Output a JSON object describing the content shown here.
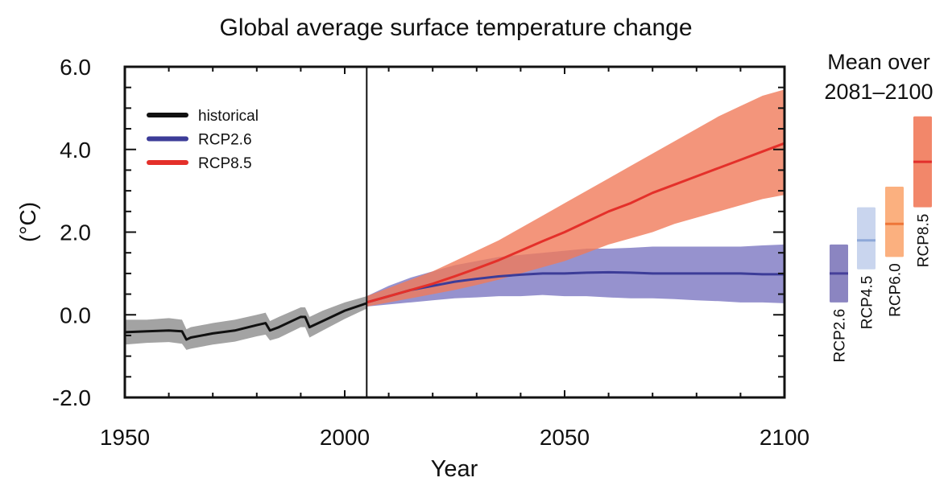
{
  "chart_data": {
    "type": "line",
    "title": "Global average surface temperature change",
    "xlabel": "Year",
    "ylabel": "(°C)",
    "xlim": [
      1950,
      2100
    ],
    "ylim": [
      -2.0,
      6.0
    ],
    "x_ticks": [
      "1950",
      "2000",
      "2050",
      "2100"
    ],
    "y_ticks": [
      "6.0",
      "4.0",
      "2.0",
      "0.0",
      "-2.0"
    ],
    "grid": false,
    "legend_placement": "top-left",
    "reference_line_year": 2005,
    "series": [
      {
        "name": "historical",
        "color": "#111111",
        "band_color": "#a3a3a3",
        "x": [
          1950,
          1955,
          1960,
          1963,
          1964,
          1965,
          1970,
          1975,
          1980,
          1982,
          1983,
          1985,
          1990,
          1991,
          1992,
          1995,
          2000,
          2005
        ],
        "values": [
          -0.42,
          -0.4,
          -0.38,
          -0.4,
          -0.6,
          -0.55,
          -0.45,
          -0.38,
          -0.25,
          -0.2,
          -0.38,
          -0.3,
          -0.05,
          -0.05,
          -0.3,
          -0.15,
          0.1,
          0.28
        ],
        "lower": [
          -0.72,
          -0.68,
          -0.66,
          -0.7,
          -0.85,
          -0.82,
          -0.72,
          -0.65,
          -0.52,
          -0.48,
          -0.62,
          -0.56,
          -0.3,
          -0.3,
          -0.55,
          -0.38,
          -0.1,
          0.15
        ],
        "upper": [
          -0.12,
          -0.12,
          -0.08,
          -0.12,
          -0.35,
          -0.3,
          -0.2,
          -0.12,
          0.0,
          0.05,
          -0.15,
          -0.05,
          0.18,
          0.18,
          -0.05,
          0.1,
          0.3,
          0.45
        ]
      },
      {
        "name": "RCP2.6",
        "color": "#3c3c98",
        "band_color": "#7c77c2",
        "x": [
          2005,
          2010,
          2015,
          2020,
          2025,
          2030,
          2035,
          2040,
          2045,
          2050,
          2055,
          2060,
          2065,
          2070,
          2075,
          2080,
          2085,
          2090,
          2095,
          2100
        ],
        "values": [
          0.3,
          0.45,
          0.6,
          0.7,
          0.8,
          0.87,
          0.93,
          0.97,
          1.0,
          1.0,
          1.02,
          1.03,
          1.02,
          1.0,
          1.0,
          1.0,
          1.0,
          1.0,
          0.98,
          0.98
        ],
        "lower": [
          0.2,
          0.25,
          0.3,
          0.35,
          0.4,
          0.42,
          0.45,
          0.45,
          0.48,
          0.45,
          0.45,
          0.42,
          0.4,
          0.4,
          0.38,
          0.35,
          0.33,
          0.3,
          0.3,
          0.28
        ],
        "upper": [
          0.45,
          0.7,
          0.9,
          1.05,
          1.2,
          1.3,
          1.4,
          1.45,
          1.5,
          1.55,
          1.6,
          1.6,
          1.62,
          1.65,
          1.65,
          1.65,
          1.65,
          1.65,
          1.68,
          1.7
        ]
      },
      {
        "name": "RCP8.5",
        "color": "#e4302a",
        "band_color": "#f07a5a",
        "x": [
          2005,
          2010,
          2015,
          2020,
          2025,
          2030,
          2035,
          2040,
          2045,
          2050,
          2055,
          2060,
          2065,
          2070,
          2075,
          2080,
          2085,
          2090,
          2095,
          2100
        ],
        "values": [
          0.3,
          0.45,
          0.6,
          0.75,
          0.93,
          1.12,
          1.32,
          1.55,
          1.78,
          2.0,
          2.25,
          2.5,
          2.7,
          2.95,
          3.15,
          3.35,
          3.55,
          3.75,
          3.95,
          4.15
        ],
        "lower": [
          0.2,
          0.3,
          0.4,
          0.5,
          0.6,
          0.72,
          0.85,
          1.0,
          1.15,
          1.3,
          1.5,
          1.7,
          1.85,
          2.0,
          2.2,
          2.35,
          2.5,
          2.65,
          2.8,
          2.9
        ],
        "upper": [
          0.45,
          0.65,
          0.85,
          1.05,
          1.3,
          1.55,
          1.8,
          2.1,
          2.4,
          2.7,
          3.0,
          3.3,
          3.6,
          3.9,
          4.2,
          4.5,
          4.8,
          5.05,
          5.3,
          5.45
        ]
      }
    ],
    "side_panel": {
      "title_line1": "Mean over",
      "title_line2": "2081–2100",
      "bars": [
        {
          "name": "RCP2.6",
          "low": 0.3,
          "high": 1.7,
          "mean": 1.0,
          "color": "#8b85c1",
          "mean_color": "#46409a"
        },
        {
          "name": "RCP4.5",
          "low": 1.1,
          "high": 2.6,
          "mean": 1.8,
          "color": "#c9d5ee",
          "mean_color": "#8ea8d8"
        },
        {
          "name": "RCP6.0",
          "low": 1.4,
          "high": 3.1,
          "mean": 2.2,
          "color": "#fbb07f",
          "mean_color": "#ee7638"
        },
        {
          "name": "RCP8.5",
          "low": 2.6,
          "high": 4.8,
          "mean": 3.7,
          "color": "#f2876a",
          "mean_color": "#e2302c"
        }
      ]
    }
  }
}
